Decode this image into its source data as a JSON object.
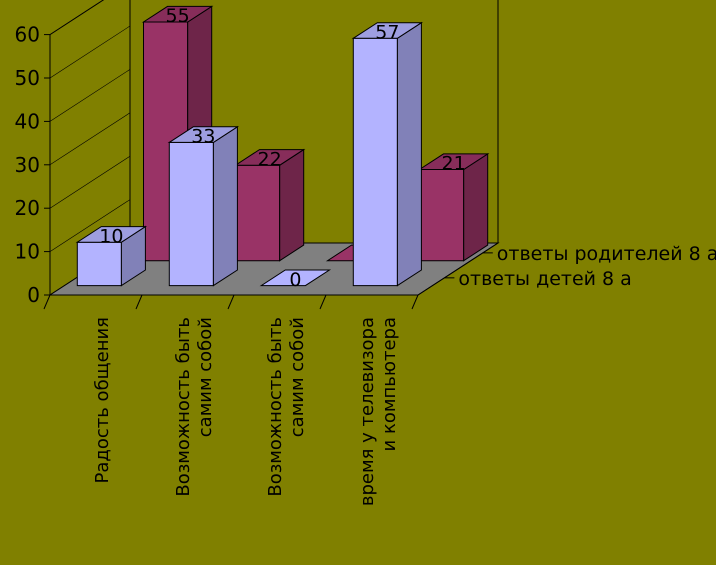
{
  "chart_data": {
    "type": "bar",
    "style": "3d-clustered-depth",
    "categories": [
      [
        "Радость общения"
      ],
      [
        "Возможность быть",
        "самим собой"
      ],
      [
        "Возможность быть",
        "самим собой"
      ],
      [
        "время у телевизора",
        "и компьютера"
      ]
    ],
    "series": [
      {
        "name": "ответы детей  8 а",
        "values": [
          10,
          33,
          0,
          57
        ],
        "color": "#b3b3ff"
      },
      {
        "name": "ответы родителей 8 а",
        "values": [
          55,
          22,
          0,
          21
        ],
        "color": "#993366"
      }
    ],
    "data_labels": [
      [
        "10",
        "33",
        "0",
        "57"
      ],
      [
        "55",
        "22",
        "0",
        "21"
      ]
    ],
    "yticks": [
      "0",
      "10",
      "20",
      "30",
      "40",
      "50",
      "60"
    ],
    "ylim": [
      0,
      60
    ],
    "legend_position": "right-depth-axis",
    "colors": {
      "background": "#808000",
      "walls": "#808000",
      "floor": "#808080"
    }
  }
}
